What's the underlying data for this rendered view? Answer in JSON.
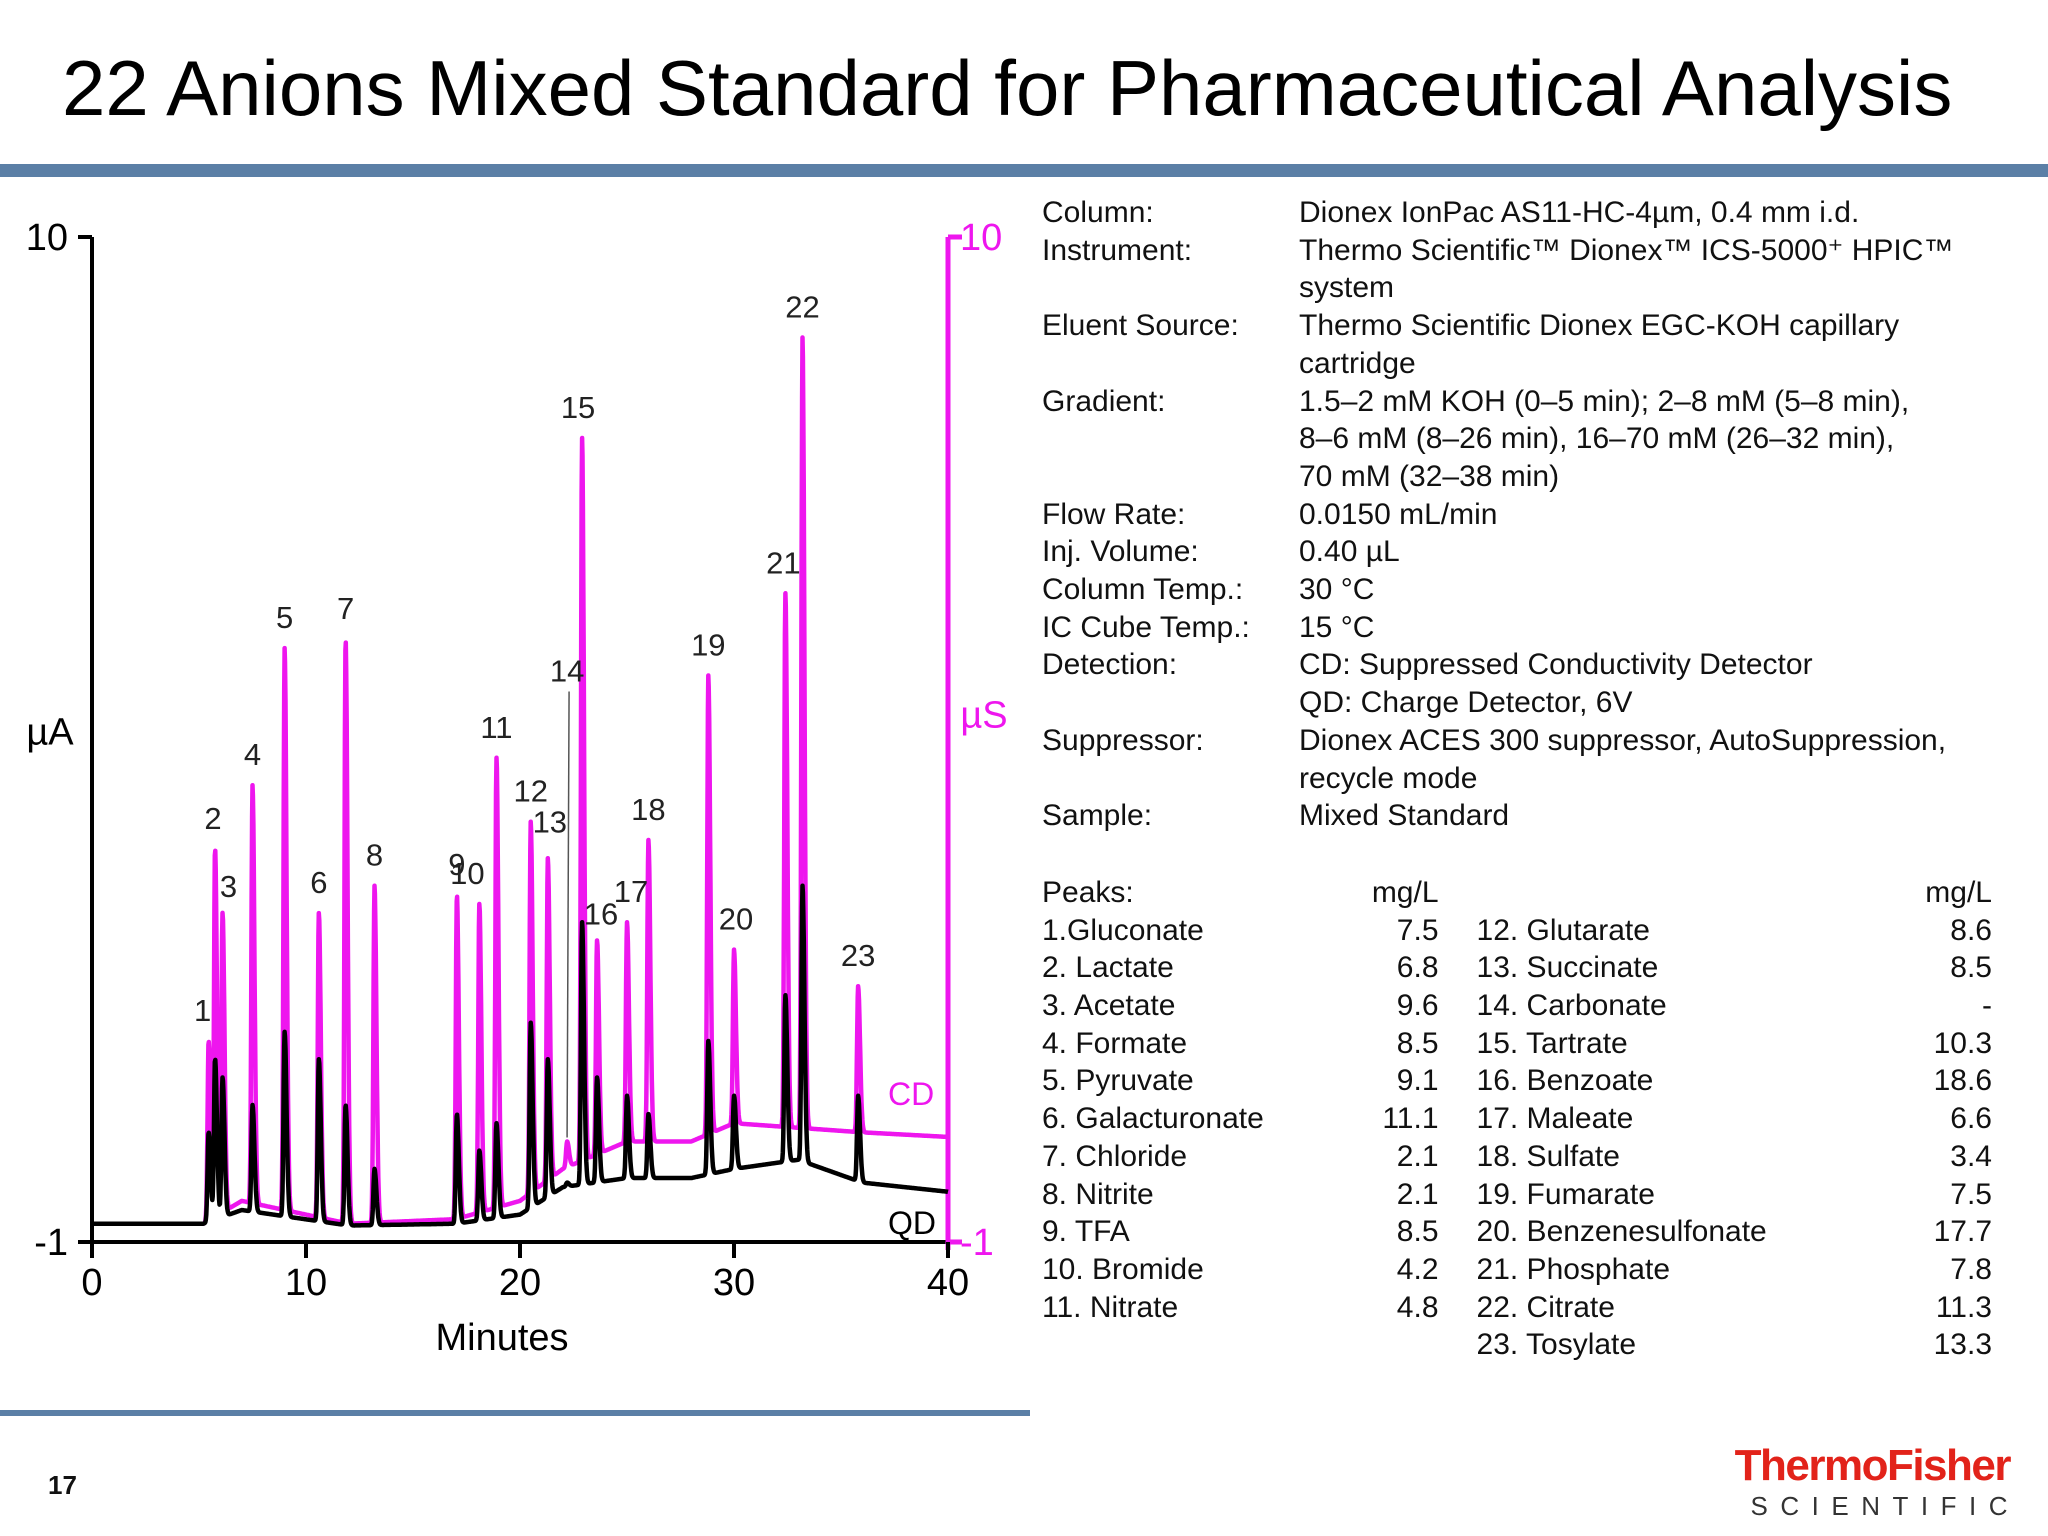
{
  "title": "22 Anions Mixed Standard for Pharmaceutical Analysis",
  "slide_number": "17",
  "logo": {
    "top": "ThermoFisher",
    "bottom": "SCIENTIFIC"
  },
  "colors": {
    "cd": "#ee16ee",
    "qd": "#000000",
    "accent_rule": "#5b7fa6",
    "brand_red": "#e2231a"
  },
  "conditions": [
    {
      "label": "Column:",
      "lines": [
        "Dionex IonPac AS11-HC-4µm, 0.4 mm i.d."
      ]
    },
    {
      "label": "Instrument:",
      "lines": [
        "Thermo Scientific™ Dionex™ ICS-5000⁺ HPIC™",
        "system"
      ]
    },
    {
      "label": "Eluent Source:",
      "lines": [
        "Thermo Scientific Dionex EGC-KOH capillary",
        "cartridge"
      ]
    },
    {
      "label": "Gradient:",
      "lines": [
        "1.5–2 mM KOH (0–5 min); 2–8 mM (5–8 min),",
        "8–6 mM (8–26 min), 16–70 mM (26–32 min),",
        "70 mM (32–38 min)"
      ]
    },
    {
      "label": "Flow Rate:",
      "lines": [
        "0.0150 mL/min"
      ]
    },
    {
      "label": "Inj. Volume:",
      "lines": [
        "0.40 µL"
      ]
    },
    {
      "label": "Column Temp.:",
      "lines": [
        "30 °C"
      ]
    },
    {
      "label": "IC Cube Temp.:",
      "lines": [
        "15 °C"
      ]
    },
    {
      "label": "Detection:",
      "lines": [
        "CD: Suppressed Conductivity Detector",
        "QD: Charge Detector, 6V"
      ]
    },
    {
      "label": "Suppressor:",
      "lines": [
        "Dionex ACES 300 suppressor, AutoSuppression,",
        "recycle mode"
      ]
    },
    {
      "label": "Sample:",
      "lines": [
        "Mixed Standard"
      ]
    }
  ],
  "peaks_table": {
    "header_left": "Peaks:",
    "unit": "mg/L",
    "left": [
      {
        "name": "1.Gluconate",
        "value": "7.5"
      },
      {
        "name": "2. Lactate",
        "value": "6.8"
      },
      {
        "name": "3. Acetate",
        "value": "9.6"
      },
      {
        "name": "4. Formate",
        "value": "8.5"
      },
      {
        "name": "5. Pyruvate",
        "value": "9.1"
      },
      {
        "name": "6. Galacturonate",
        "value": "11.1"
      },
      {
        "name": "7. Chloride",
        "value": "2.1"
      },
      {
        "name": "8. Nitrite",
        "value": "2.1"
      },
      {
        "name": "9. TFA",
        "value": "8.5"
      },
      {
        "name": "10. Bromide",
        "value": "4.2"
      },
      {
        "name": "11. Nitrate",
        "value": "4.8"
      }
    ],
    "right": [
      {
        "name": "12. Glutarate",
        "value": "8.6"
      },
      {
        "name": "13. Succinate",
        "value": "8.5"
      },
      {
        "name": "14. Carbonate",
        "value": "-"
      },
      {
        "name": "15. Tartrate",
        "value": "10.3"
      },
      {
        "name": "16. Benzoate",
        "value": "18.6"
      },
      {
        "name": "17. Maleate",
        "value": "6.6"
      },
      {
        "name": "18. Sulfate",
        "value": "3.4"
      },
      {
        "name": "19. Fumarate",
        "value": "7.5"
      },
      {
        "name": "20. Benzenesulfonate",
        "value": "17.7"
      },
      {
        "name": "21. Phosphate",
        "value": "7.8"
      },
      {
        "name": "22. Citrate",
        "value": "11.3"
      },
      {
        "name": "23. Tosylate",
        "value": "13.3"
      }
    ]
  },
  "chart_data": {
    "type": "line",
    "xlabel": "Minutes",
    "ylabel_left": "µA",
    "ylabel_right": "µS",
    "xlim": [
      0,
      40
    ],
    "ylim_left": [
      -1,
      10
    ],
    "ylim_right": [
      -1,
      10
    ],
    "x_ticks": [
      "0",
      "10",
      "20",
      "30",
      "40"
    ],
    "y_ticks_left": [
      "10",
      "-1"
    ],
    "y_ticks_right": [
      "10",
      "-1"
    ],
    "grid": false,
    "legend": "inline labels at right end of traces",
    "series": [
      {
        "name": "CD",
        "baseline": [
          [
            0,
            -0.8
          ],
          [
            5.2,
            -0.8
          ],
          [
            7,
            -0.55
          ],
          [
            12,
            -0.8
          ],
          [
            17,
            -0.75
          ],
          [
            20,
            -0.55
          ],
          [
            22,
            -0.2
          ],
          [
            25,
            0.1
          ],
          [
            28,
            0.1
          ],
          [
            30,
            0.3
          ],
          [
            33,
            0.25
          ],
          [
            36,
            0.2
          ],
          [
            40,
            0.15
          ]
        ]
      },
      {
        "name": "QD",
        "baseline": [
          [
            0,
            -0.8
          ],
          [
            5.2,
            -0.8
          ],
          [
            7,
            -0.65
          ],
          [
            12,
            -0.82
          ],
          [
            17,
            -0.8
          ],
          [
            20,
            -0.7
          ],
          [
            22,
            -0.4
          ],
          [
            25,
            -0.3
          ],
          [
            28,
            -0.3
          ],
          [
            30,
            -0.2
          ],
          [
            33,
            -0.1
          ],
          [
            36,
            -0.35
          ],
          [
            40,
            -0.45
          ]
        ]
      }
    ],
    "peaks": [
      {
        "label": "1",
        "rt": 5.45,
        "cd": 1.2,
        "qd": 0.2
      },
      {
        "label": "2",
        "rt": 5.75,
        "cd": 3.3,
        "qd": 1.0
      },
      {
        "label": "3",
        "rt": 6.1,
        "cd": 2.6,
        "qd": 0.8
      },
      {
        "label": "4",
        "rt": 7.5,
        "cd": 4.0,
        "qd": 0.5
      },
      {
        "label": "5",
        "rt": 9.0,
        "cd": 5.5,
        "qd": 1.3
      },
      {
        "label": "6",
        "rt": 10.6,
        "cd": 2.6,
        "qd": 1.0
      },
      {
        "label": "7",
        "rt": 11.85,
        "cd": 5.6,
        "qd": 0.5
      },
      {
        "label": "8",
        "rt": 13.2,
        "cd": 2.9,
        "qd": -0.2
      },
      {
        "label": "9",
        "rt": 17.05,
        "cd": 2.8,
        "qd": 0.4
      },
      {
        "label": "10",
        "rt": 18.1,
        "cd": 2.7,
        "qd": 0.0
      },
      {
        "label": "11",
        "rt": 18.9,
        "cd": 4.3,
        "qd": 0.3
      },
      {
        "label": "12",
        "rt": 20.5,
        "cd": 3.6,
        "qd": 1.4
      },
      {
        "label": "13",
        "rt": 21.3,
        "cd": 3.2,
        "qd": 1.0
      },
      {
        "label": "14",
        "rt": 22.2,
        "cd": 0.1,
        "qd": -0.35
      },
      {
        "label": "15",
        "rt": 22.9,
        "cd": 7.8,
        "qd": 2.5
      },
      {
        "label": "16",
        "rt": 23.6,
        "cd": 2.3,
        "qd": 0.8
      },
      {
        "label": "17",
        "rt": 25.0,
        "cd": 2.5,
        "qd": 0.6
      },
      {
        "label": "18",
        "rt": 26.0,
        "cd": 3.4,
        "qd": 0.4
      },
      {
        "label": "19",
        "rt": 28.8,
        "cd": 5.2,
        "qd": 1.2
      },
      {
        "label": "20",
        "rt": 30.0,
        "cd": 2.2,
        "qd": 0.6
      },
      {
        "label": "21",
        "rt": 32.4,
        "cd": 6.1,
        "qd": 1.7
      },
      {
        "label": "22",
        "rt": 33.2,
        "cd": 8.9,
        "qd": 2.9
      },
      {
        "label": "23",
        "rt": 35.8,
        "cd": 1.8,
        "qd": 0.6
      }
    ]
  }
}
